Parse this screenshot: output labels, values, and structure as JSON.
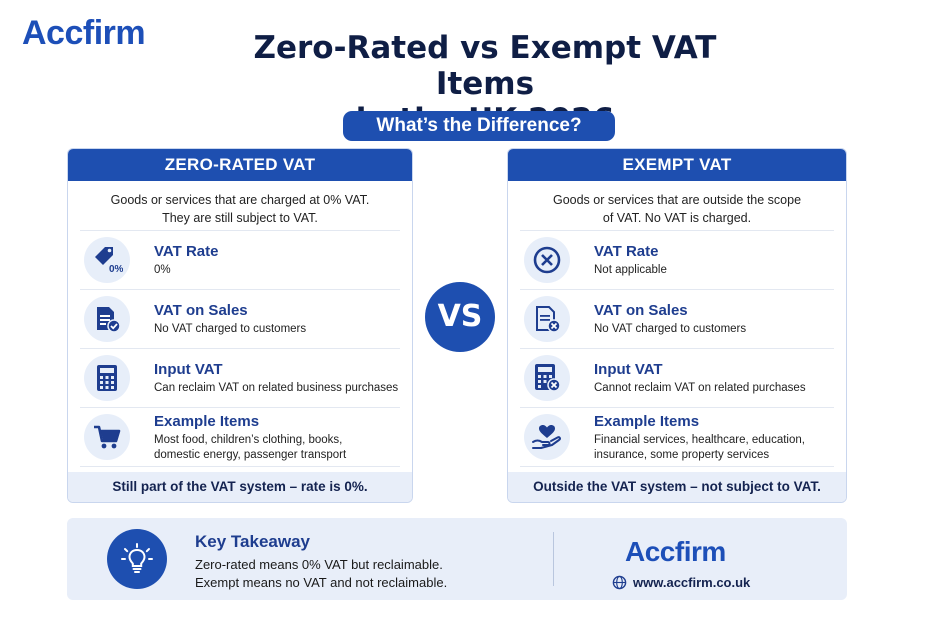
{
  "brand": {
    "name": "Accfirm",
    "website": "www.accfirm.co.uk",
    "accent": "#1e4fb0"
  },
  "header": {
    "title_line1": "Zero-Rated vs Exempt VAT Items",
    "title_line2": "in the UK 2026",
    "subtitle": "What’s the Difference?"
  },
  "left": {
    "heading": "ZERO-RATED VAT",
    "desc_line1": "Goods or services that are charged at 0% VAT.",
    "desc_line2": "They are still subject to VAT.",
    "rows": [
      {
        "icon": "price-tag-icon",
        "tag": "0%",
        "label": "VAT Rate",
        "value1": "0%",
        "value2": ""
      },
      {
        "icon": "document-check-icon",
        "label": "VAT on Sales",
        "value1": "No VAT charged to customers",
        "value2": ""
      },
      {
        "icon": "calculator-icon",
        "label": "Input VAT",
        "value1": "Can reclaim VAT on related business purchases",
        "value2": ""
      },
      {
        "icon": "shopping-cart-icon",
        "label": "Example Items",
        "value1": "Most food, children’s clothing, books,",
        "value2": "domestic energy, passenger transport"
      }
    ],
    "footer": "Still part of the VAT system – rate is 0%."
  },
  "vs": "VS",
  "right": {
    "heading": "EXEMPT VAT",
    "desc_line1": "Goods or services that are outside the scope",
    "desc_line2": "of VAT. No VAT is charged.",
    "rows": [
      {
        "icon": "circle-x-icon",
        "label": "VAT Rate",
        "value1": "Not applicable",
        "value2": ""
      },
      {
        "icon": "document-x-icon",
        "label": "VAT on Sales",
        "value1": "No VAT charged to customers",
        "value2": ""
      },
      {
        "icon": "calculator-x-icon",
        "label": "Input VAT",
        "value1": "Cannot reclaim VAT on related purchases",
        "value2": ""
      },
      {
        "icon": "heart-hand-icon",
        "label": "Example Items",
        "value1": "Financial services, healthcare, education,",
        "value2": "insurance, some property services"
      }
    ],
    "footer": "Outside the VAT system – not subject to VAT."
  },
  "takeaway": {
    "icon": "lightbulb-icon",
    "title": "Key Takeaway",
    "line1": "Zero-rated means 0% VAT but reclaimable.",
    "line2": "Exempt means no VAT and not reclaimable."
  }
}
